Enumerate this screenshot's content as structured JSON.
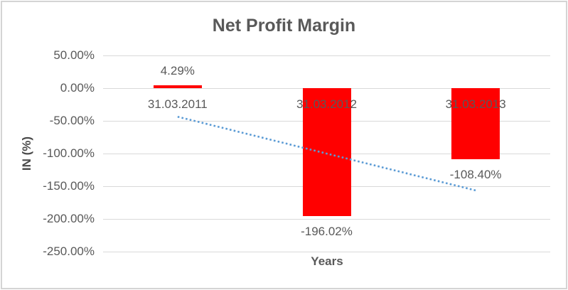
{
  "chart_data": {
    "type": "bar",
    "title": "Net Profit Margin",
    "xlabel": "Years",
    "ylabel": "IN (%)",
    "categories": [
      "31.03.2011",
      "31.03.2012",
      "31.03.2013"
    ],
    "values": [
      4.29,
      -196.02,
      -108.4
    ],
    "data_labels": [
      "4.29%",
      "-196.02%",
      "-108.40%"
    ],
    "ylim": [
      -250,
      50
    ],
    "y_ticks": [
      {
        "value": 50,
        "label": "50.00%"
      },
      {
        "value": 0,
        "label": "0.00%"
      },
      {
        "value": -50,
        "label": "-50.00%"
      },
      {
        "value": -100,
        "label": "-100.00%"
      },
      {
        "value": -150,
        "label": "-150.00%"
      },
      {
        "value": -200,
        "label": "-200.00%"
      },
      {
        "value": -250,
        "label": "-250.00%"
      }
    ],
    "grid": true,
    "legend": "none",
    "bar_color": "#ff0000",
    "gridline_color": "#d9d9d9",
    "text_color": "#595959",
    "trendline": {
      "type": "linear",
      "style": "dotted",
      "color": "#5b9bd5",
      "start_value": -43.7,
      "end_value": -156.4
    }
  }
}
